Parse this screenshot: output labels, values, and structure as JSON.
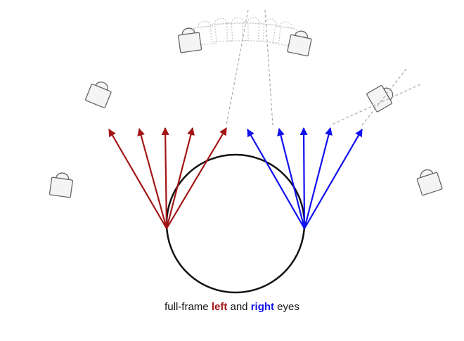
{
  "caption": {
    "prefix": "full-frame ",
    "left_word": "left",
    "middle": " and ",
    "right_word": "right",
    "suffix": " eyes"
  },
  "colors": {
    "left_eye": "#a31515",
    "right_eye": "#1010ee",
    "circle": "#111111",
    "camera_stroke": "#666666",
    "camera_fill": "#f4f4f4",
    "ghost_stroke": "#bbbbbb",
    "dashed": "#aaaaaa"
  },
  "icons": {
    "camera": "camera-icon",
    "camera_ghost": "camera-ghost-icon"
  }
}
